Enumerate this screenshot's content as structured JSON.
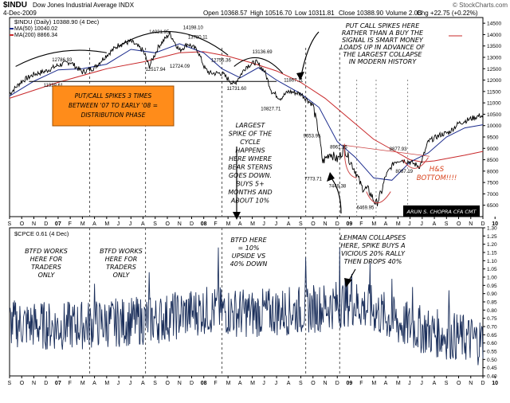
{
  "header": {
    "symbol": "$INDU",
    "name": "Dow Jones Industrial Average INDX",
    "date": "4-Dec-2009",
    "open": "Open 10368.57",
    "high": "High 10516.70",
    "low": "Low 10311.81",
    "close": "Close 10388.90",
    "volume": "Volume 2.0B",
    "chg": "Chg +22.75 (+0.22%)",
    "arrow": "▲",
    "watermark": "© StockCharts.com"
  },
  "legend_top": {
    "main": "$INDU (Daily) 10388.90 (4 Dec)",
    "ma50": "MA(50) 10040.02",
    "ma200": "MA(200) 8866.34"
  },
  "legend_bottom": {
    "main": "$CPCE 0.61 (4 Dec)"
  },
  "colors": {
    "price": "#000000",
    "ma50": "#1a2a8c",
    "ma200": "#c8282a",
    "cpce": "#1b2f5b",
    "note_box": "#ff8c1a",
    "author_box": "#000000",
    "hs_text": "#d8401a"
  },
  "annotations": {
    "putcall_box": [
      "PUT/CALL SPIKES 3 TIMES",
      "BETWEEN '07 TO EARLY '08 =",
      "DISTRIBUTION PHASE"
    ],
    "top_right": [
      "PUT CALL SPIKES HERE",
      "RATHER THAN A BUY THE",
      "SIGNAL IS SMART MONEY",
      "LOADS UP IN ADVANCE OF",
      "THE LARGEST COLLAPSE",
      "IN MODERN HISTORY"
    ],
    "middle": [
      "LARGEST",
      "SPIKE OF THE",
      "CYCLE",
      "HAPPENS",
      "HERE WHERE",
      "BEAR STERNS",
      "GOES DOWN.",
      "BUYS 5+",
      "MONTHS AND",
      "ABOUT 10%"
    ],
    "hs": [
      "H&S",
      "BOTTOM!!!!"
    ],
    "author": "ARUN S. CHOPRA CFA CMT",
    "btfd1": [
      "BTFD WORKS",
      "HERE FOR",
      "TRADERS",
      "ONLY"
    ],
    "btfd2": [
      "BTFD WORKS",
      "HERE FOR",
      "TRADERS",
      "ONLY"
    ],
    "btfd3": [
      "BTFD HERE",
      "= 10%",
      "UPSIDE VS",
      "40% DOWN"
    ],
    "lehman": [
      "LEHMAN COLLAPSES",
      "HERE, SPIKE BUYS A",
      "VICIOUS 20% RALLY",
      "THEN DROPS 40%"
    ]
  },
  "chart_data": [
    {
      "type": "line",
      "title": "$INDU (Daily) 10388.90 (4 Dec)",
      "ylim": [
        6000,
        14750
      ],
      "y_ticks": [
        6500,
        7000,
        7500,
        8000,
        8500,
        9000,
        9500,
        10000,
        10500,
        11000,
        11500,
        12000,
        12500,
        13000,
        13500,
        14000,
        14500
      ],
      "x_range_months": [
        0,
        39
      ],
      "x_month_labels": [
        "S",
        "O",
        "N",
        "D",
        "07",
        "F",
        "M",
        "A",
        "M",
        "J",
        "J",
        "A",
        "S",
        "O",
        "N",
        "D",
        "08",
        "F",
        "M",
        "A",
        "M",
        "J",
        "J",
        "A",
        "S",
        "O",
        "N",
        "D",
        "09",
        "F",
        "M",
        "A",
        "M",
        "J",
        "J",
        "A",
        "S",
        "O",
        "N",
        "D",
        "10"
      ],
      "grid": false,
      "series": [
        {
          "name": "$INDU",
          "points": [
            [
              0,
              11400
            ],
            [
              1,
              11950
            ],
            [
              2,
              12250
            ],
            [
              3,
              12400
            ],
            [
              4,
              12650
            ],
            [
              5,
              12800
            ],
            [
              6,
              12350
            ],
            [
              7,
              12550
            ],
            [
              8,
              13100
            ],
            [
              9,
              13550
            ],
            [
              10,
              13700
            ],
            [
              11,
              13300
            ],
            [
              11.5,
              12600
            ],
            [
              12.3,
              13500
            ],
            [
              13.2,
              14050
            ],
            [
              14,
              13300
            ],
            [
              14.7,
              13600
            ],
            [
              15.5,
              13300
            ],
            [
              16.1,
              12500
            ],
            [
              16.5,
              12300
            ],
            [
              17.5,
              12300
            ],
            [
              18.5,
              11800
            ],
            [
              19.5,
              12600
            ],
            [
              20.3,
              12800
            ],
            [
              21,
              12400
            ],
            [
              21.6,
              11500
            ],
            [
              22.3,
              11200
            ],
            [
              23,
              11500
            ],
            [
              24,
              11400
            ],
            [
              25,
              10900
            ],
            [
              25.5,
              9600
            ],
            [
              25.8,
              8400
            ],
            [
              26.4,
              8800
            ],
            [
              27,
              8500
            ],
            [
              27.6,
              9000
            ],
            [
              28,
              8500
            ],
            [
              28.5,
              8000
            ],
            [
              29,
              7300
            ],
            [
              29.6,
              7150
            ],
            [
              30.2,
              6547
            ],
            [
              30.6,
              7000
            ],
            [
              31,
              7800
            ],
            [
              31.7,
              8400
            ],
            [
              32.2,
              8500
            ],
            [
              33,
              8400
            ],
            [
              33.8,
              8200
            ],
            [
              34.5,
              9300
            ],
            [
              35.5,
              9600
            ],
            [
              36.2,
              9700
            ],
            [
              37,
              10100
            ],
            [
              38,
              10300
            ],
            [
              38.8,
              10450
            ],
            [
              39,
              10389
            ]
          ]
        },
        {
          "name": "MA(50)",
          "points": [
            [
              0,
              11300
            ],
            [
              2,
              11950
            ],
            [
              4,
              12450
            ],
            [
              6,
              12500
            ],
            [
              8,
              12700
            ],
            [
              10,
              13350
            ],
            [
              12,
              13200
            ],
            [
              14,
              13600
            ],
            [
              16,
              13200
            ],
            [
              17.5,
              12500
            ],
            [
              19,
              12100
            ],
            [
              20.5,
              12550
            ],
            [
              22,
              12000
            ],
            [
              24,
              11400
            ],
            [
              25.5,
              10800
            ],
            [
              27,
              9300
            ],
            [
              28.5,
              8600
            ],
            [
              30,
              7700
            ],
            [
              31.5,
              7600
            ],
            [
              33,
              8400
            ],
            [
              34.5,
              8800
            ],
            [
              36,
              9500
            ],
            [
              37.5,
              9900
            ],
            [
              39,
              10040
            ]
          ]
        },
        {
          "name": "MA(200)",
          "points": [
            [
              0,
              11200
            ],
            [
              4,
              11900
            ],
            [
              8,
              12500
            ],
            [
              11,
              12800
            ],
            [
              14,
              13200
            ],
            [
              16,
              13250
            ],
            [
              18,
              13050
            ],
            [
              20,
              12750
            ],
            [
              22,
              12400
            ],
            [
              24,
              11900
            ],
            [
              26,
              11200
            ],
            [
              28,
              10300
            ],
            [
              30,
              9400
            ],
            [
              32,
              8800
            ],
            [
              33,
              8500
            ],
            [
              34,
              8400
            ],
            [
              35,
              8450
            ],
            [
              36,
              8550
            ],
            [
              37.5,
              8700
            ],
            [
              39,
              8866
            ]
          ]
        }
      ],
      "data_labels": [
        "12786.93",
        "11939.61",
        "14021.95",
        "14198.10",
        "12517.94",
        "13780.11",
        "12724.09",
        "12756.36",
        "13136.69",
        "11867.11",
        "11731.60",
        "10827.71",
        "9653.95",
        "8961.26",
        "7773.71",
        "7449.38",
        "6469.95",
        "8877.93",
        "8087.19"
      ]
    },
    {
      "type": "line",
      "title": "$CPCE 0.61 (4 Dec)",
      "ylim": [
        0.4,
        1.3
      ],
      "y_ticks": [
        0.4,
        0.45,
        0.5,
        0.55,
        0.6,
        0.65,
        0.7,
        0.75,
        0.8,
        0.85,
        0.9,
        0.95,
        1.0,
        1.05,
        1.1,
        1.15,
        1.2,
        1.25,
        1.3
      ],
      "x_range_months": [
        0,
        39
      ],
      "grid": false,
      "series": [
        {
          "name": "$CPCE",
          "base_points": [
            [
              0,
              0.72
            ],
            [
              4,
              0.7
            ],
            [
              8,
              0.72
            ],
            [
              12,
              0.74
            ],
            [
              16,
              0.8
            ],
            [
              20,
              0.78
            ],
            [
              24,
              0.8
            ],
            [
              26,
              0.82
            ],
            [
              28,
              0.85
            ],
            [
              30,
              0.8
            ],
            [
              32,
              0.72
            ],
            [
              35,
              0.66
            ],
            [
              39,
              0.61
            ]
          ],
          "spikes": [
            [
              7,
              0.96
            ],
            [
              11.5,
              1.03
            ],
            [
              17.2,
              1.18
            ],
            [
              24.4,
              1.12
            ],
            [
              27.2,
              1.18
            ],
            [
              28.2,
              1.02
            ],
            [
              29.7,
              1.09
            ],
            [
              31.5,
              0.99
            ],
            [
              33.2,
              0.94
            ],
            [
              36.2,
              0.92
            ]
          ]
        }
      ]
    }
  ]
}
